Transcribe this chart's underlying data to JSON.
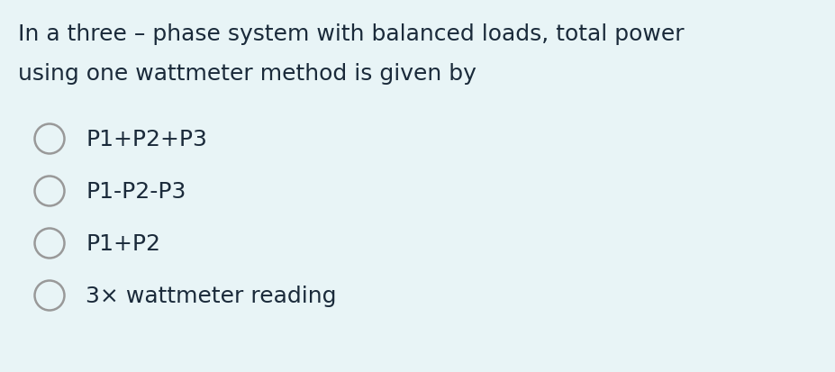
{
  "background_color": "#e8f4f6",
  "question_line1": "In a three – phase system with balanced loads, total power",
  "question_line2": "using one wattmeter method is given by",
  "options": [
    "P1+P2+P3",
    "P1-P2-P3",
    "P1+P2",
    "3× wattmeter reading"
  ],
  "text_color": "#1a2a3a",
  "circle_edge_color": "#999999",
  "question_fontsize": 18,
  "option_fontsize": 18,
  "fig_width": 9.27,
  "fig_height": 4.14,
  "dpi": 100
}
